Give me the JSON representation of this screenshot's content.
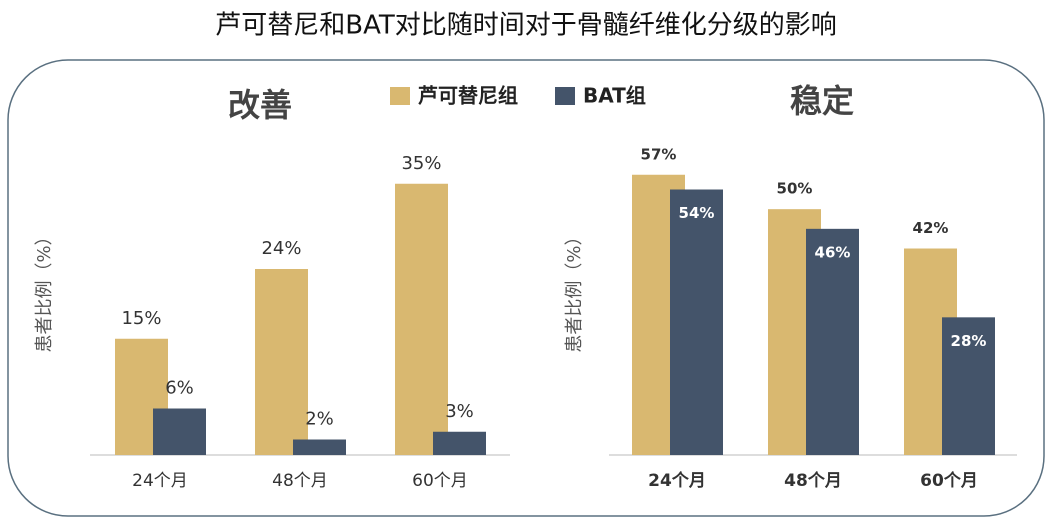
{
  "title": "芦可替尼和BAT对比随时间对于骨髓纤维化分级的影响",
  "chart_data": [
    {
      "type": "bar",
      "title": "改善",
      "ylabel": "患者比例（%）",
      "categories": [
        "24个月",
        "48个月",
        "60个月"
      ],
      "series": [
        {
          "name": "芦可替尼组",
          "color": "#d9b870",
          "values": [
            15,
            24,
            35
          ],
          "value_labels": [
            "15%",
            "24%",
            "35%"
          ]
        },
        {
          "name": "BAT组",
          "color": "#44546a",
          "values": [
            6,
            2,
            3
          ],
          "value_labels": [
            "6%",
            "2%",
            "3%"
          ]
        }
      ],
      "ylim": [
        0,
        40
      ]
    },
    {
      "type": "bar",
      "title": "稳定",
      "ylabel": "患者比例（%）",
      "categories": [
        "24个月",
        "48个月",
        "60个月"
      ],
      "series": [
        {
          "color": "#d9b870",
          "values": [
            57,
            50,
            42
          ],
          "value_labels": [
            "57%",
            "50%",
            "42%"
          ]
        },
        {
          "color": "#44546a",
          "values": [
            54,
            46,
            28
          ],
          "value_labels": [
            "54%",
            "46%",
            "28%"
          ]
        }
      ],
      "ylim": [
        0,
        60
      ]
    }
  ]
}
